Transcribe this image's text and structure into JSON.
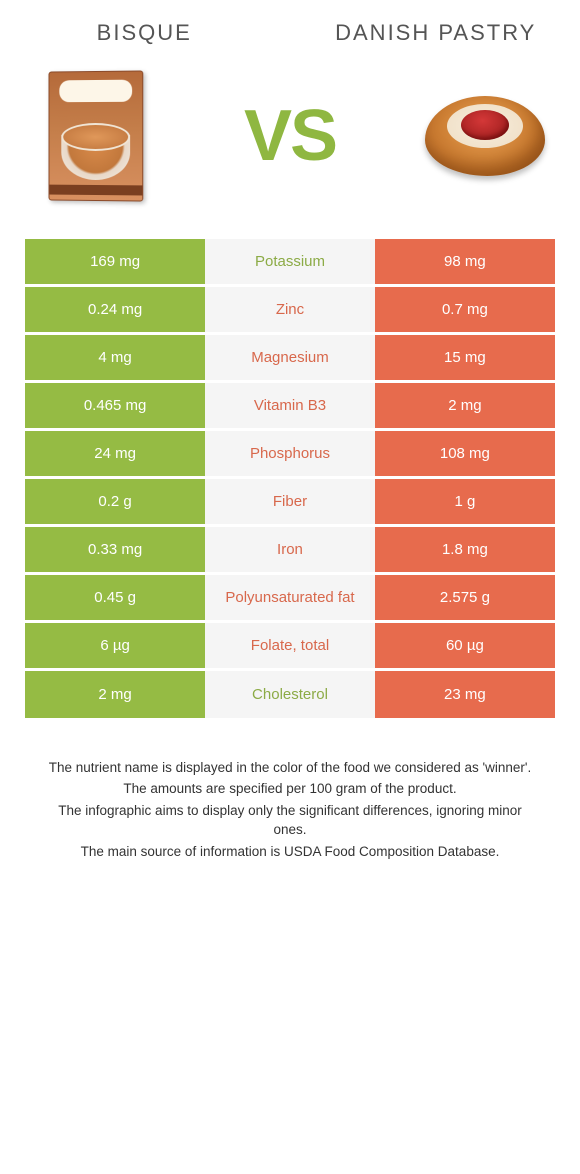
{
  "colors": {
    "left_bg": "#95bb44",
    "right_bg": "#e76b4d",
    "mid_bg": "#f5f5f5",
    "mid_green_text": "#8cab46",
    "mid_orange_text": "#d8684c",
    "title_text": "#555555",
    "vs_text": "#8fb741",
    "body_bg": "#ffffff"
  },
  "left_title": "BISQUE",
  "right_title": "DANISH PASTRY",
  "vs_label": "VS",
  "rows": [
    {
      "left": "169 mg",
      "name": "Potassium",
      "right": "98 mg",
      "winner": "left"
    },
    {
      "left": "0.24 mg",
      "name": "Zinc",
      "right": "0.7 mg",
      "winner": "right"
    },
    {
      "left": "4 mg",
      "name": "Magnesium",
      "right": "15 mg",
      "winner": "right"
    },
    {
      "left": "0.465 mg",
      "name": "Vitamin B3",
      "right": "2 mg",
      "winner": "right"
    },
    {
      "left": "24 mg",
      "name": "Phosphorus",
      "right": "108 mg",
      "winner": "right"
    },
    {
      "left": "0.2 g",
      "name": "Fiber",
      "right": "1 g",
      "winner": "right"
    },
    {
      "left": "0.33 mg",
      "name": "Iron",
      "right": "1.8 mg",
      "winner": "right"
    },
    {
      "left": "0.45 g",
      "name": "Polyunsaturated fat",
      "right": "2.575 g",
      "winner": "right"
    },
    {
      "left": "6 µg",
      "name": "Folate, total",
      "right": "60 µg",
      "winner": "right"
    },
    {
      "left": "2 mg",
      "name": "Cholesterol",
      "right": "23 mg",
      "winner": "left"
    }
  ],
  "footnotes": [
    "The nutrient name is displayed in the color of the food we considered as 'winner'.",
    "The amounts are specified per 100 gram of the product.",
    "The infographic aims to display only the significant differences, ignoring minor ones.",
    "The main source of information is USDA Food Composition Database."
  ]
}
